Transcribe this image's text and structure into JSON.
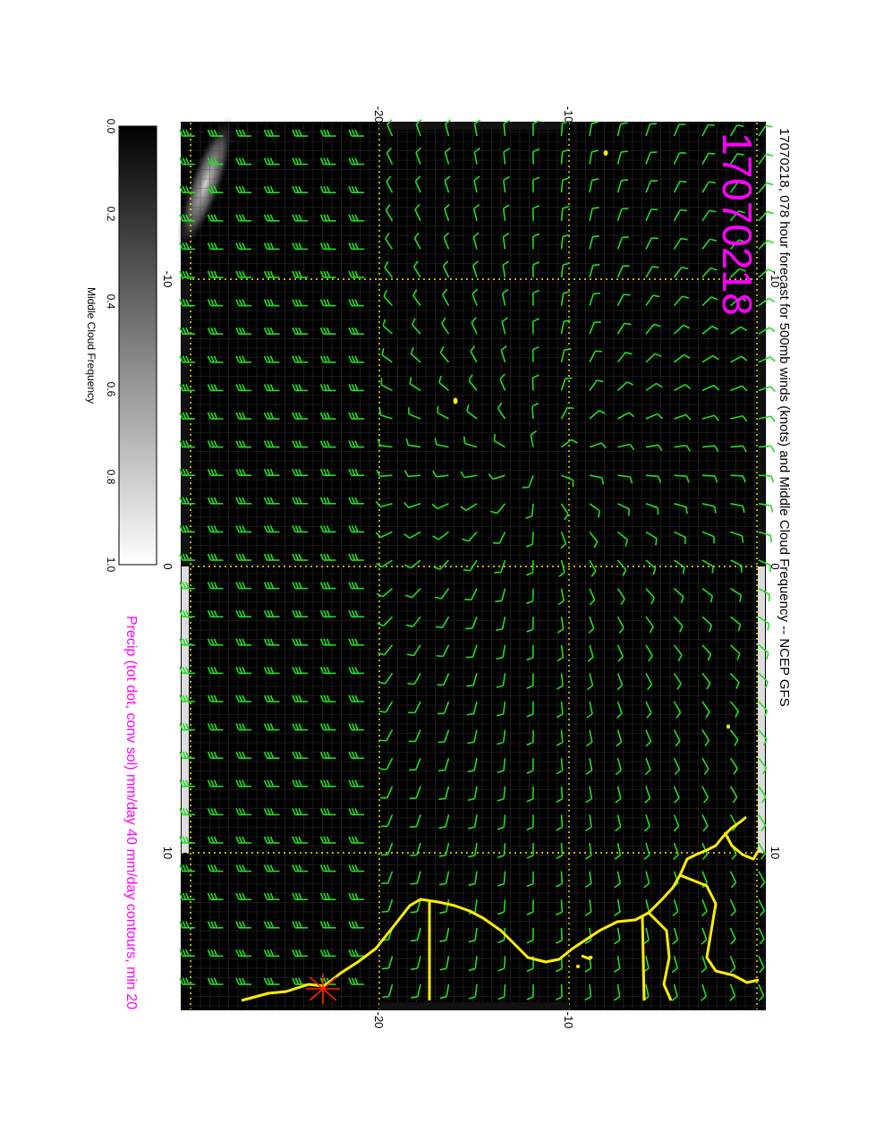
{
  "title": "17070218, 078 hour forecast for 500mb winds (knots) and Middle Cloud Frequency -- NCEP GFS",
  "date_stamp": "17070218",
  "precip_caption": "Precip (tot dot, conv sol) mm/day 40 mm/day contours, min 20",
  "colorbar": {
    "label": "Middle Cloud Frequency",
    "ticks": [
      "0.0",
      "0.2",
      "0.4",
      "0.6",
      "0.8",
      "1.0"
    ],
    "range": [
      0,
      1
    ]
  },
  "axes": {
    "top_ticks": [
      "-20",
      "-10"
    ],
    "bottom_ticks": [
      "-20",
      "-10"
    ],
    "left_ticks": [
      "-10",
      "0",
      "10"
    ],
    "right_ticks": [
      "-10",
      "0",
      "10"
    ]
  },
  "colors": {
    "background": "#000000",
    "wind_barb": "#22dd22",
    "coastline": "#ffee00",
    "grid": "#ffee00",
    "magenta": "#ff00ff",
    "storm_marker": "#ff2200"
  },
  "legend_icons": {
    "storm": "storm-star-icon"
  }
}
